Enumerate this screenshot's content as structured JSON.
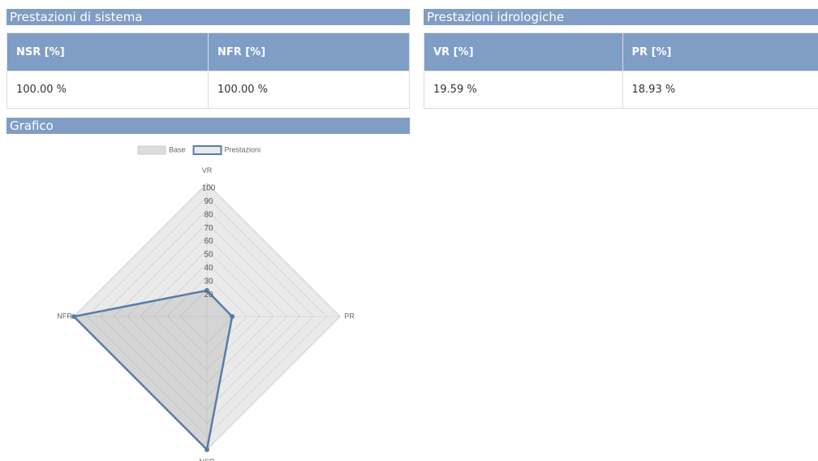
{
  "panels": [
    {
      "title": "Prestazioni di sistema",
      "table": {
        "header": [
          "NSR [%]",
          "NFR [%]"
        ],
        "rows": [
          [
            "100.00 %",
            "100.00 %"
          ]
        ]
      }
    },
    {
      "title": "Prestazioni idrologiche",
      "table": {
        "header": [
          "VR [%]",
          "PR [%]"
        ],
        "rows": [
          [
            "19.59 %",
            "18.93 %"
          ]
        ]
      }
    }
  ],
  "chart_title": "Grafico",
  "chart_data": {
    "type": "radar",
    "categories": [
      "VR",
      "PR",
      "NSR",
      "NFR"
    ],
    "series": [
      {
        "name": "Base",
        "color": "#dcdcdc",
        "values": [
          100,
          100,
          100,
          100
        ]
      },
      {
        "name": "Prestazioni",
        "color": "#5b7ba8",
        "values": [
          19.59,
          18.93,
          100,
          100
        ]
      }
    ],
    "ylim": [
      0,
      100
    ],
    "yticks": [
      20,
      30,
      40,
      50,
      60,
      70,
      80,
      90,
      100
    ],
    "grid": true,
    "legend": "top"
  }
}
